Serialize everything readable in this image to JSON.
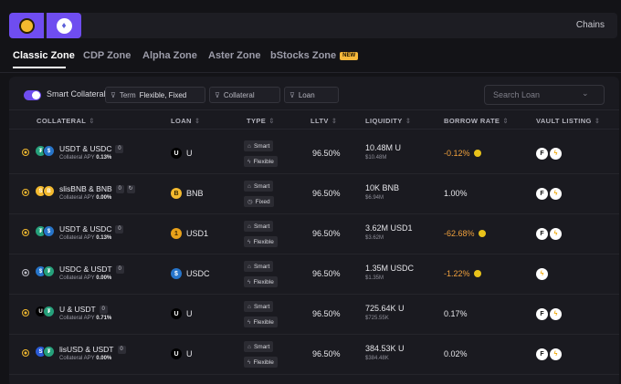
{
  "chains": {
    "label": "Chains",
    "items": [
      {
        "name": "bnb-chain-icon",
        "active": true
      },
      {
        "name": "ethereum-icon",
        "active": true
      }
    ]
  },
  "tabs": [
    {
      "label": "Classic Zone",
      "active": true
    },
    {
      "label": "CDP Zone"
    },
    {
      "label": "Alpha Zone"
    },
    {
      "label": "Aster Zone"
    },
    {
      "label": "bStocks Zone",
      "badge": "NEW"
    }
  ],
  "filters": {
    "toggle_label": "Smart Collateral",
    "toggle_on": true,
    "term_label": "Term",
    "term_value": "Flexible, Fixed",
    "collateral_label": "Collateral",
    "loan_label": "Loan",
    "search_placeholder": "Search Loan"
  },
  "columns": {
    "collateral": "COLLATERAL",
    "loan": "LOAN",
    "type": "TYPE",
    "lltv": "LLTV",
    "liquidity": "LIQUIDITY",
    "borrow_rate": "BORROW RATE",
    "vault_listing": "VAULT LISTING"
  },
  "rows": [
    {
      "pair": "USDT & USDC",
      "count": "0",
      "apy_label": "Collateral APY",
      "apy": "0.13%",
      "loan": "U",
      "type1": "Smart",
      "type2": "Flexible",
      "lltv": "96.50%",
      "liq": "10.48M U",
      "liq_usd": "$10.48M",
      "rate": "-0.12%",
      "rate_negative": true,
      "rate_icon": true
    },
    {
      "pair": "slisBNB & BNB",
      "count": "0",
      "extra_icon": true,
      "apy_label": "Collateral APY",
      "apy": "0.00%",
      "loan": "BNB",
      "type1": "Smart",
      "type2": "Fixed",
      "lltv": "96.50%",
      "liq": "10K BNB",
      "liq_usd": "$6.94M",
      "rate": "1.00%",
      "rate_negative": false,
      "rate_icon": false
    },
    {
      "pair": "USDT & USDC",
      "count": "0",
      "apy_label": "Collateral APY",
      "apy": "0.13%",
      "loan": "USD1",
      "type1": "Smart",
      "type2": "Flexible",
      "lltv": "96.50%",
      "liq": "3.62M USD1",
      "liq_usd": "$3.62M",
      "rate": "-62.68%",
      "rate_negative": true,
      "rate_icon": true
    },
    {
      "pair": "USDC & USDT",
      "count": "0",
      "apy_label": "Collateral APY",
      "apy": "0.00%",
      "loan": "USDC",
      "type1": "Smart",
      "type2": "Flexible",
      "lltv": "96.50%",
      "liq": "1.35M USDC",
      "liq_usd": "$1.35M",
      "rate": "-1.22%",
      "rate_negative": true,
      "rate_icon": true
    },
    {
      "pair": "U & USDT",
      "count": "0",
      "apy_label": "Collateral APY",
      "apy": "0.71%",
      "loan": "U",
      "type1": "Smart",
      "type2": "Flexible",
      "lltv": "96.50%",
      "liq": "725.64K U",
      "liq_usd": "$725.55K",
      "rate": "0.17%",
      "rate_negative": false,
      "rate_icon": false
    },
    {
      "pair": "lisUSD & USDT",
      "count": "0",
      "apy_label": "Collateral APY",
      "apy": "0.00%",
      "loan": "U",
      "type1": "Smart",
      "type2": "Flexible",
      "lltv": "96.50%",
      "liq": "384.53K U",
      "liq_usd": "$384.48K",
      "rate": "0.02%",
      "rate_negative": false,
      "rate_icon": false
    }
  ]
}
